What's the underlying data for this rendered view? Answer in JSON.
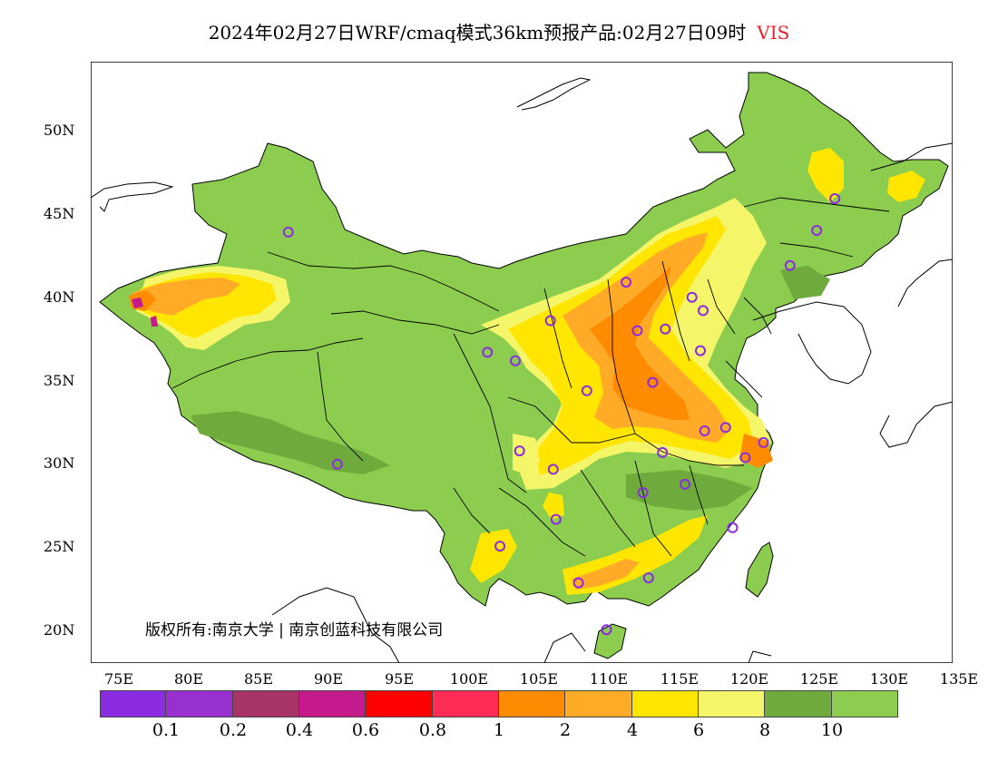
{
  "title": "2024年02月27日WRF/cmaq模式36km预报产品:02月27日09时",
  "variable": "VIS",
  "copyright": "版权所有:南京大学 | 南京创蓝科技有限公司",
  "lat_labels": [
    "50N",
    "45N",
    "40N",
    "35N",
    "30N",
    "25N",
    "20N"
  ],
  "lon_labels": [
    "75E",
    "80E",
    "85E",
    "90E",
    "95E",
    "100E",
    "105E",
    "110E",
    "115E",
    "120E",
    "125E",
    "130E",
    "135E"
  ],
  "legend": {
    "colors": [
      "#8b2be2",
      "#9b30d0",
      "#a83366",
      "#c41a8c",
      "#ff0000",
      "#ff2d55",
      "#ff8c00",
      "#ffab28",
      "#ffe600",
      "#f5f56a",
      "#6eaa3c",
      "#8ccc4e"
    ],
    "labels": [
      "0.1",
      "0.2",
      "0.4",
      "0.6",
      "0.8",
      "1",
      "2",
      "4",
      "6",
      "8",
      "10"
    ]
  },
  "map": {
    "lon_range": [
      73.5,
      135.0
    ],
    "lat_range": [
      18.0,
      54.0
    ],
    "land_color": "#8ccc4e",
    "station_color": "#8b2be2",
    "stations": [
      {
        "lon": 87.6,
        "lat": 43.8
      },
      {
        "lon": 91.1,
        "lat": 29.9
      },
      {
        "lon": 101.8,
        "lat": 36.6
      },
      {
        "lon": 103.8,
        "lat": 36.1
      },
      {
        "lon": 106.3,
        "lat": 38.5
      },
      {
        "lon": 104.1,
        "lat": 30.7
      },
      {
        "lon": 106.5,
        "lat": 29.6
      },
      {
        "lon": 106.7,
        "lat": 26.6
      },
      {
        "lon": 102.7,
        "lat": 25.0
      },
      {
        "lon": 108.3,
        "lat": 22.8
      },
      {
        "lon": 110.3,
        "lat": 20.0
      },
      {
        "lon": 113.3,
        "lat": 23.1
      },
      {
        "lon": 112.9,
        "lat": 28.2
      },
      {
        "lon": 114.3,
        "lat": 30.6
      },
      {
        "lon": 115.9,
        "lat": 28.7
      },
      {
        "lon": 119.3,
        "lat": 26.1
      },
      {
        "lon": 120.2,
        "lat": 30.3
      },
      {
        "lon": 121.5,
        "lat": 31.2
      },
      {
        "lon": 118.8,
        "lat": 32.1
      },
      {
        "lon": 117.3,
        "lat": 31.9
      },
      {
        "lon": 113.6,
        "lat": 34.8
      },
      {
        "lon": 108.9,
        "lat": 34.3
      },
      {
        "lon": 111.7,
        "lat": 40.8
      },
      {
        "lon": 112.5,
        "lat": 37.9
      },
      {
        "lon": 114.5,
        "lat": 38.0
      },
      {
        "lon": 116.4,
        "lat": 39.9
      },
      {
        "lon": 117.2,
        "lat": 39.1
      },
      {
        "lon": 117.0,
        "lat": 36.7
      },
      {
        "lon": 123.4,
        "lat": 41.8
      },
      {
        "lon": 125.3,
        "lat": 43.9
      },
      {
        "lon": 126.6,
        "lat": 45.8
      }
    ]
  }
}
